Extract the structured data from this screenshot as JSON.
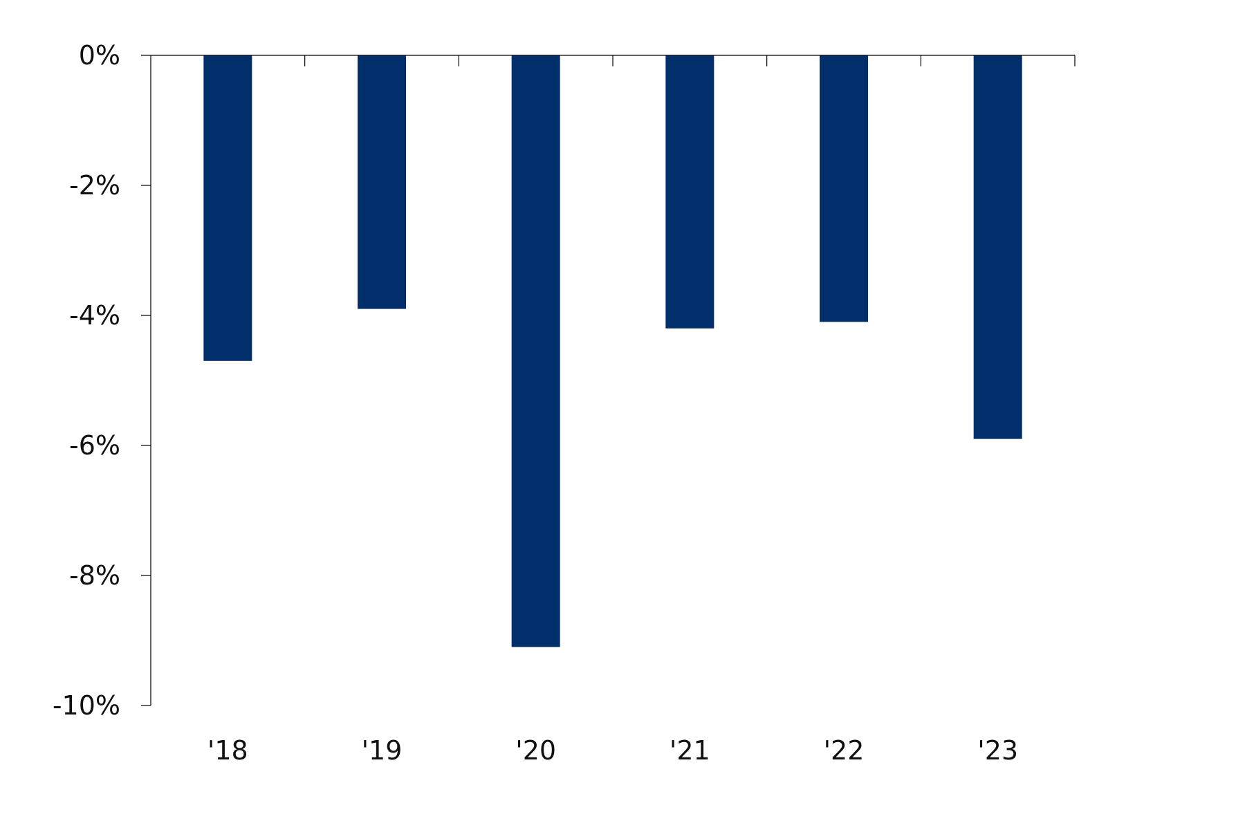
{
  "chart_data": {
    "type": "bar",
    "categories": [
      "'18",
      "'19",
      "'20",
      "'21",
      "'22",
      "'23"
    ],
    "values": [
      -4.7,
      -3.9,
      -9.1,
      -4.2,
      -4.1,
      -5.9
    ],
    "ylim": [
      -10,
      0
    ],
    "yticks": [
      0,
      -2,
      -4,
      -6,
      -8,
      -10
    ],
    "ytick_labels": [
      "0%",
      "-2%",
      "-4%",
      "-6%",
      "-8%",
      "-10%"
    ],
    "title": "",
    "xlabel": "",
    "ylabel": "",
    "legend": "none",
    "grid": false,
    "bar_color": "#002F6C"
  }
}
